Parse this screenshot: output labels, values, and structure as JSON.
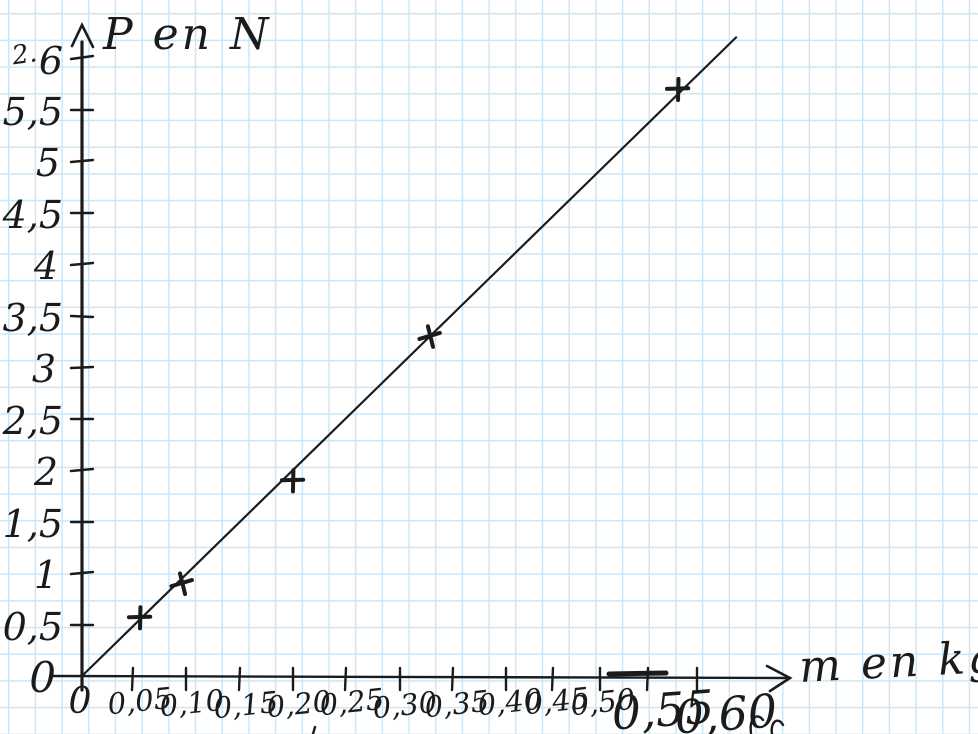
{
  "page": {
    "kind": "hand-drawn physics graph on squared (quadrille) paper",
    "background_color": "#ffffff",
    "grid_color": "#cde6f6",
    "ink_color": "#1b1b1b"
  },
  "chart_data": {
    "type": "scatter",
    "title": "",
    "xlabel": "m en kg",
    "ylabel": "P en N",
    "xlim": [
      0,
      0.62
    ],
    "ylim": [
      0,
      6.2
    ],
    "grid": "on (paper squares)",
    "legend": "none",
    "x_tick_labels": [
      "0",
      "0,05",
      "0,10",
      "0,15",
      "0,20",
      "0,25",
      "0,30",
      "0,35",
      "0,40",
      "0,45",
      "0,50",
      "0,55",
      "0,60"
    ],
    "y_tick_labels": [
      "0",
      "0,5",
      "1",
      "1,5",
      "2",
      "2,5",
      "3",
      "3,5",
      "4",
      "4,5",
      "5",
      "5,5",
      "6"
    ],
    "points": [
      {
        "m": 0.055,
        "P": 0.57
      },
      {
        "m": 0.095,
        "P": 0.9
      },
      {
        "m": 0.2,
        "P": 1.9
      },
      {
        "m": 0.33,
        "P": 3.3
      },
      {
        "m": 0.565,
        "P": 5.7
      }
    ],
    "fit_line": {
      "from": {
        "m": 0,
        "P": 0
      },
      "to": {
        "m": 0.62,
        "P": 6.2
      },
      "slope_N_per_kg": 10,
      "passes_through_origin": true
    },
    "annotations": {
      "top_left_note": "2."
    }
  }
}
